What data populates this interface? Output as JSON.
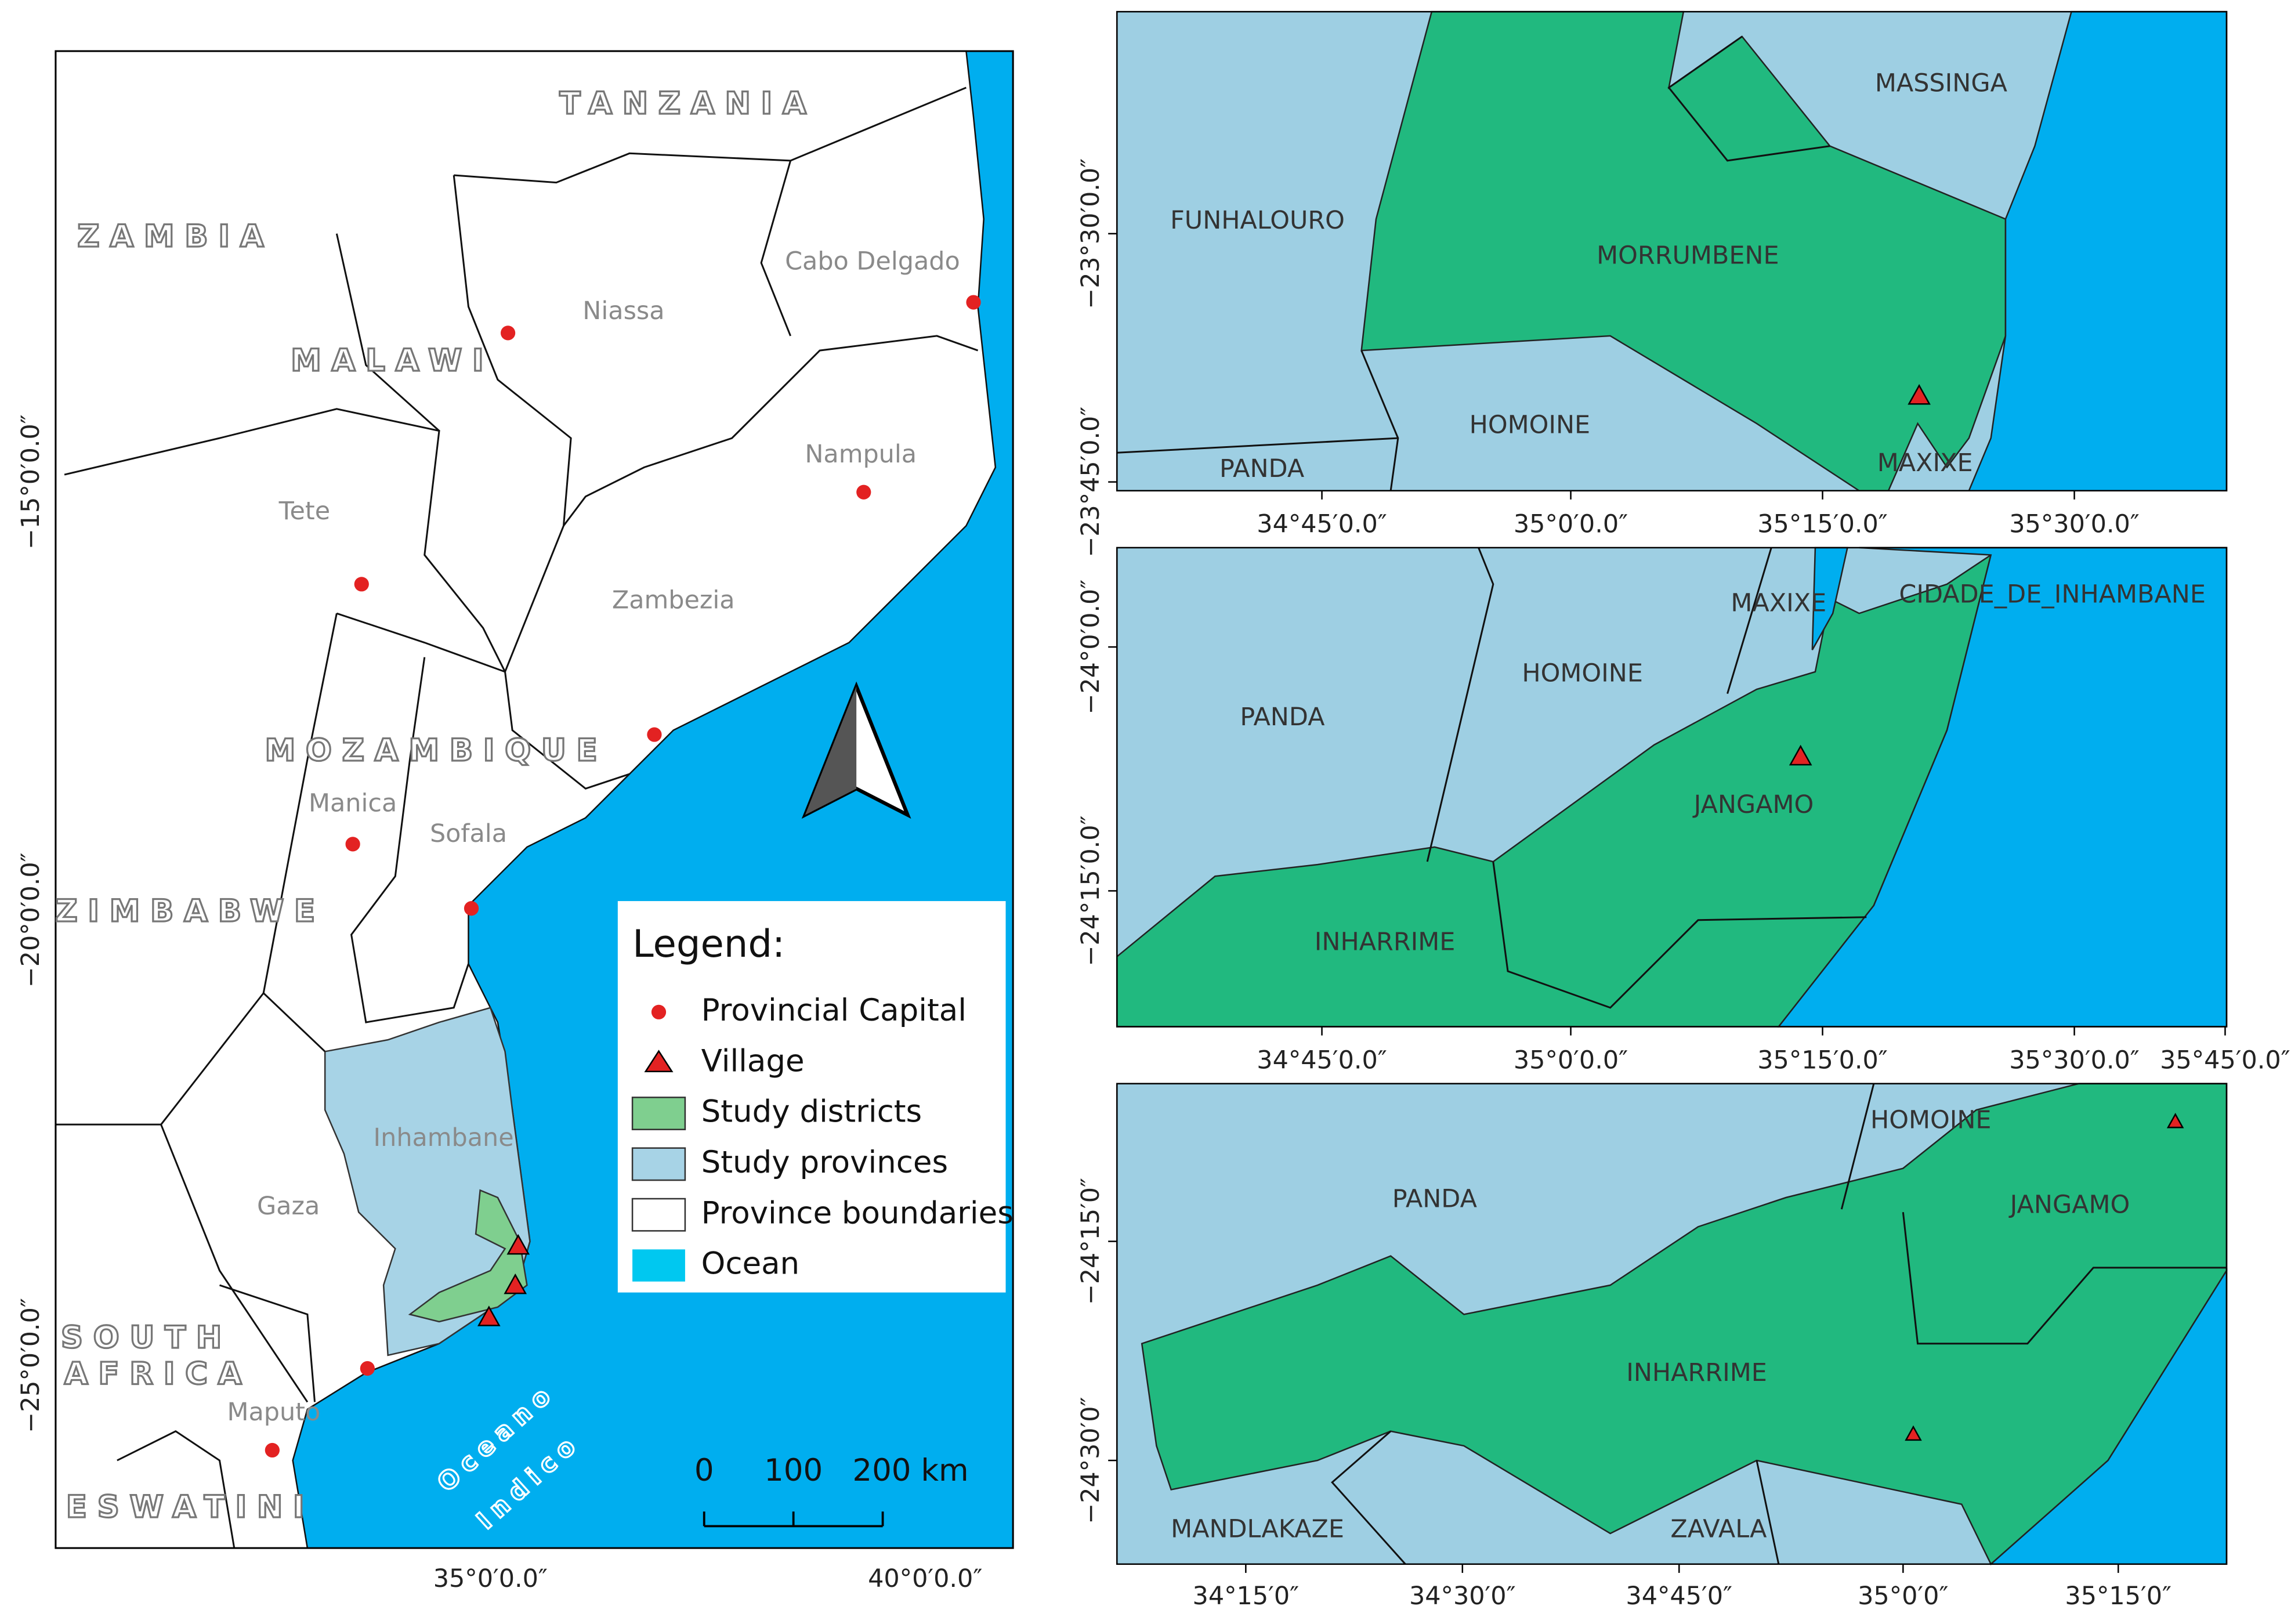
{
  "main_map": {
    "countries": [
      "TANZANIA",
      "ZAMBIA",
      "MALAWI",
      "MOZAMBIQUE",
      "ZIMBABWE",
      "SOUTH",
      "AFRICA",
      "ESWATINI"
    ],
    "provinces": [
      "Cabo Delgado",
      "Niassa",
      "Nampula",
      "Tete",
      "Zambezia",
      "Manica",
      "Sofala",
      "Inhambane",
      "Gaza",
      "Maputo"
    ],
    "ocean": [
      "Oceano",
      "Indico"
    ],
    "yticks": [
      "−15°0′0.0″",
      "−20°0′0.0″",
      "−25°0′0.0″"
    ],
    "xticks": [
      "35°0′0.0″",
      "40°0′0.0″"
    ],
    "scale_bar": [
      "0",
      "100",
      "200 km"
    ]
  },
  "legend": {
    "title": "Legend:",
    "items": [
      "Provincial Capital",
      "Village",
      "Study districts",
      "Study provinces",
      "Province boundaries",
      "Ocean"
    ]
  },
  "insets": [
    {
      "labels": [
        "MASSINGA",
        "FUNHALOURO",
        "MORRUMBENE",
        "HOMOINE",
        "PANDA",
        "MAXIXE"
      ],
      "xticks": [
        "34°45′0.0″",
        "35°0′0.0″",
        "35°15′0.0″",
        "35°30′0.0″"
      ],
      "yticks": [
        "−23°30′0.0″",
        "−23°45′0.0″"
      ]
    },
    {
      "labels": [
        "MAXIXE",
        "CIDADE_DE_INHAMBANE",
        "HOMOINE",
        "PANDA",
        "JANGAMO",
        "INHARRIME"
      ],
      "xticks": [
        "34°45′0.0″",
        "35°0′0.0″",
        "35°15′0.0″",
        "35°30′0.0″",
        "35°45′0.0″"
      ],
      "yticks": [
        "−24°0′0.0″",
        "−24°15′0.0″"
      ]
    },
    {
      "labels": [
        "HOMOINE",
        "PANDA",
        "JANGAMO",
        "INHARRIME",
        "MANDLAKAZE",
        "ZAVALA"
      ],
      "xticks": [
        "34°15′0″",
        "34°30′0″",
        "34°45′0″",
        "35°0′0″",
        "35°15′0″"
      ],
      "yticks": [
        "−24°15′0″",
        "−24°30′0″"
      ]
    }
  ]
}
